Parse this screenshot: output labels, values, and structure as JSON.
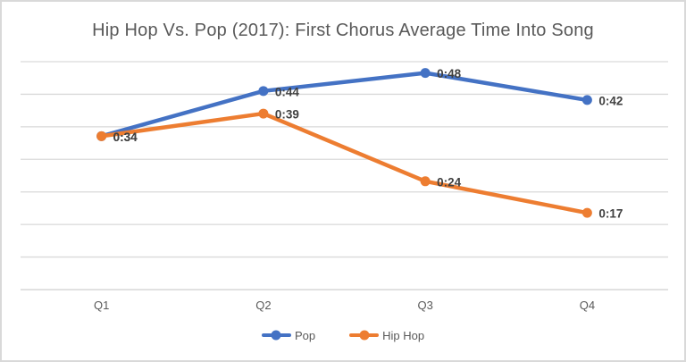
{
  "window": {
    "background": "#ffffff",
    "border_color": "#d9d9d9"
  },
  "chart_data": {
    "type": "line",
    "title": "Hip Hop Vs. Pop (2017): First Chorus Average Time Into Song",
    "categories": [
      "Q1",
      "Q2",
      "Q3",
      "Q4"
    ],
    "series": [
      {
        "name": "Pop",
        "color": "#4472C4",
        "values_seconds": [
          34,
          44,
          48,
          42
        ],
        "data_labels": [
          "0:34",
          "0:44",
          "0:48",
          "0:42"
        ]
      },
      {
        "name": "Hip Hop",
        "color": "#ED7D31",
        "values_seconds": [
          34,
          39,
          24,
          17
        ],
        "data_labels": [
          "0:34",
          "0:39",
          "0:24",
          "0:17"
        ]
      }
    ],
    "xlabel": "",
    "ylabel": "",
    "ylim": [
      0,
      50.5
    ],
    "y_axis_labels_visible": false,
    "gridline_count": 8,
    "grid_on": true,
    "grid_color": "#d9d9d9",
    "axis_label_color": "#595959",
    "data_label_color": "#404040",
    "title_color": "#595959",
    "show_data_labels": true,
    "legend_position": "bottom"
  }
}
